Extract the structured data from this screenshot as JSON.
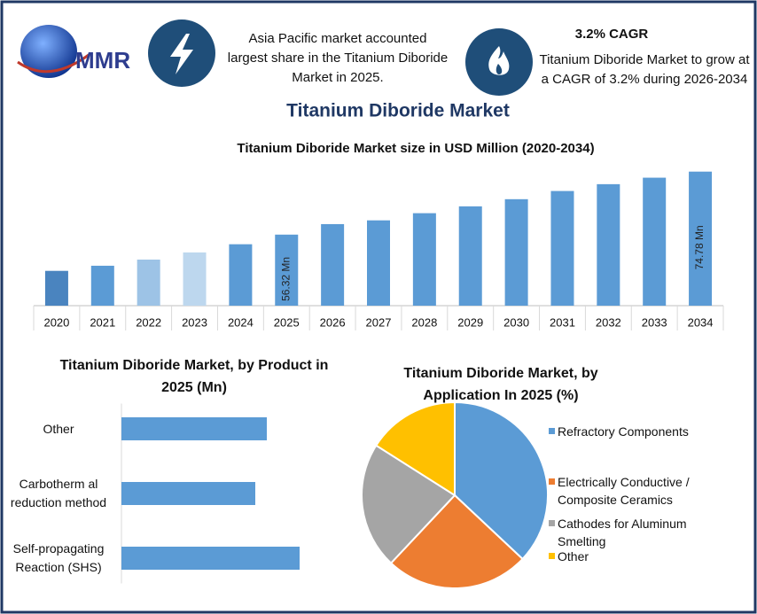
{
  "header": {
    "logo": "MMR",
    "note": "Asia Pacific market accounted largest share in the Titanium Diboride Market in 2025.",
    "cagr_title": "3.2% CAGR",
    "cagr_text": "Titanium Diboride Market to grow at a CAGR of 3.2% during 2026-2034",
    "title": "Titanium Diboride Market"
  },
  "chart_data": [
    {
      "type": "bar",
      "title": "Titanium Diboride Market size in USD Million (2020-2034)",
      "categories": [
        "2020",
        "2021",
        "2022",
        "2023",
        "2024",
        "2025",
        "2026",
        "2027",
        "2028",
        "2029",
        "2030",
        "2031",
        "2032",
        "2033",
        "2034"
      ],
      "values": [
        45.7,
        47.2,
        49.0,
        51.1,
        53.5,
        56.32,
        59.4,
        60.5,
        62.6,
        64.6,
        66.7,
        69.1,
        71.1,
        73.0,
        74.78
      ],
      "value_labels": [
        null,
        null,
        null,
        null,
        null,
        "56.32 Mn",
        null,
        null,
        null,
        null,
        null,
        null,
        null,
        null,
        "74.78 Mn"
      ],
      "colors": [
        "#4a84bf",
        "#5b9bd5",
        "#9dc3e6",
        "#bdd7ee",
        "#5b9bd5",
        "#5b9bd5",
        "#5b9bd5",
        "#5b9bd5",
        "#5b9bd5",
        "#5b9bd5",
        "#5b9bd5",
        "#5b9bd5",
        "#5b9bd5",
        "#5b9bd5",
        "#5b9bd5"
      ],
      "ylim": [
        35.5,
        76
      ]
    },
    {
      "type": "barh",
      "title": "Titanium Diboride Market, by Product in 2025 (Mn)",
      "categories": [
        "Other",
        "Carbotherm al reduction method",
        "Self-propagating Reaction (SHS)"
      ],
      "values": [
        16.4,
        15.1,
        20.1
      ],
      "color": "#5b9bd5",
      "xlim": [
        0,
        25
      ]
    },
    {
      "type": "pie",
      "title": "Titanium Diboride Market, by Application In 2025 (%)",
      "categories": [
        "Refractory Components",
        "Electrically Conductive / Composite Ceramics",
        "Cathodes for Aluminum Smelting",
        "Other"
      ],
      "values": [
        37,
        25,
        22,
        16
      ],
      "colors": [
        "#5b9bd5",
        "#ed7d31",
        "#a5a5a5",
        "#ffc000"
      ]
    }
  ]
}
